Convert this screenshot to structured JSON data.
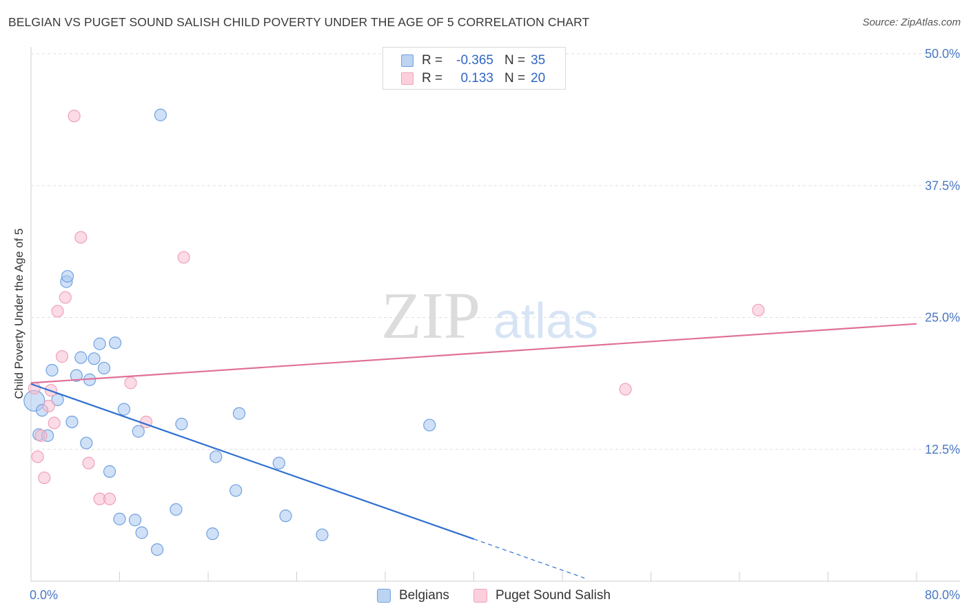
{
  "header": {
    "title": "BELGIAN VS PUGET SOUND SALISH CHILD POVERTY UNDER THE AGE OF 5 CORRELATION CHART",
    "source": "Source: ZipAtlas.com"
  },
  "watermark": {
    "zip": "ZIP",
    "atlas": "atlas"
  },
  "legend_top": {
    "rows": [
      {
        "r_label": "R =",
        "r_value": "-0.365",
        "n_label": "N =",
        "n_value": "35"
      },
      {
        "r_label": "R =",
        "r_value": "0.133",
        "n_label": "N =",
        "n_value": "20"
      }
    ]
  },
  "legend_bottom": {
    "items": [
      "Belgians",
      "Puget Sound Salish"
    ]
  },
  "chart_data": {
    "type": "scatter",
    "title": "BELGIAN VS PUGET SOUND SALISH CHILD POVERTY UNDER THE AGE OF 5 CORRELATION CHART",
    "xlabel": "",
    "ylabel": "Child Poverty Under the Age of 5",
    "xlim": [
      0,
      80
    ],
    "ylim": [
      0,
      50
    ],
    "x_tick_labels": [
      "0.0%",
      "80.0%"
    ],
    "y_ticks": [
      12.5,
      25.0,
      37.5,
      50.0
    ],
    "y_tick_labels": [
      "12.5%",
      "25.0%",
      "37.5%",
      "50.0%"
    ],
    "grid": "horizontal dashed",
    "legend_placement": "bottom",
    "colors": {
      "Belgians": "#6fa0e0",
      "Puget Sound Salish": "#f0a0b8",
      "belgian_line": "#2e6fd0",
      "salish_line": "#e07098"
    },
    "series": [
      {
        "name": "Belgians",
        "points": [
          [
            0.3,
            17.1
          ],
          [
            0.7,
            13.9
          ],
          [
            1.0,
            16.2
          ],
          [
            1.5,
            13.8
          ],
          [
            1.9,
            20.0
          ],
          [
            2.4,
            17.2
          ],
          [
            3.2,
            28.4
          ],
          [
            3.3,
            28.9
          ],
          [
            3.7,
            15.1
          ],
          [
            4.1,
            19.5
          ],
          [
            4.5,
            21.2
          ],
          [
            5.0,
            13.1
          ],
          [
            5.3,
            19.1
          ],
          [
            5.7,
            21.1
          ],
          [
            6.2,
            22.5
          ],
          [
            6.6,
            20.2
          ],
          [
            7.1,
            10.4
          ],
          [
            7.6,
            22.6
          ],
          [
            8.0,
            5.9
          ],
          [
            8.4,
            16.3
          ],
          [
            9.4,
            5.8
          ],
          [
            9.7,
            14.2
          ],
          [
            10.0,
            4.6
          ],
          [
            11.4,
            3.0
          ],
          [
            11.7,
            44.2
          ],
          [
            13.1,
            6.8
          ],
          [
            13.6,
            14.9
          ],
          [
            16.4,
            4.5
          ],
          [
            16.7,
            11.8
          ],
          [
            18.5,
            8.6
          ],
          [
            18.8,
            15.9
          ],
          [
            22.4,
            11.2
          ],
          [
            23.0,
            6.2
          ],
          [
            26.3,
            4.4
          ],
          [
            36.0,
            14.8
          ]
        ]
      },
      {
        "name": "Puget Sound Salish",
        "points": [
          [
            0.3,
            18.3
          ],
          [
            0.6,
            11.8
          ],
          [
            0.9,
            13.8
          ],
          [
            1.2,
            9.8
          ],
          [
            1.6,
            16.6
          ],
          [
            1.8,
            18.1
          ],
          [
            2.1,
            15.0
          ],
          [
            2.4,
            25.6
          ],
          [
            2.8,
            21.3
          ],
          [
            3.1,
            26.9
          ],
          [
            3.9,
            44.1
          ],
          [
            4.5,
            32.6
          ],
          [
            5.2,
            11.2
          ],
          [
            6.2,
            7.8
          ],
          [
            7.1,
            7.8
          ],
          [
            9.0,
            18.8
          ],
          [
            10.4,
            15.1
          ],
          [
            13.8,
            30.7
          ],
          [
            53.7,
            18.2
          ],
          [
            65.7,
            25.7
          ]
        ]
      }
    ],
    "trendlines": [
      {
        "series": "Belgians",
        "r": -0.365,
        "n": 35,
        "solid": [
          [
            0,
            18.7
          ],
          [
            40,
            4.0
          ]
        ],
        "dashed": [
          [
            40,
            4.0
          ],
          [
            50,
            0.3
          ]
        ]
      },
      {
        "series": "Puget Sound Salish",
        "r": 0.133,
        "n": 20,
        "solid": [
          [
            0,
            18.8
          ],
          [
            80,
            24.4
          ]
        ]
      }
    ]
  }
}
